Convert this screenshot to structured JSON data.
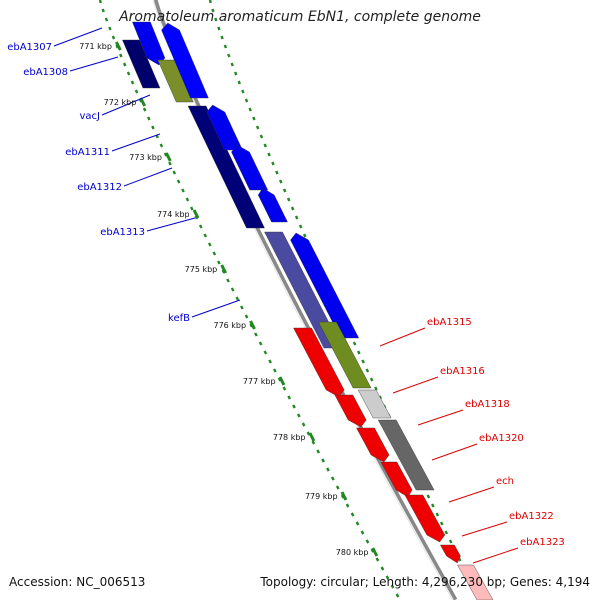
{
  "title": "Aromatoleum aromaticum EbN1, complete genome",
  "footer": {
    "accession": "Accession: NC_006513",
    "topology": "Topology: circular; Length: 4,296,230 bp; Genes: 4,194"
  },
  "kbp_ticks": [
    "771 kbp",
    "772 kbp",
    "773 kbp",
    "774 kbp",
    "775 kbp",
    "776 kbp",
    "777 kbp",
    "778 kbp",
    "779 kbp",
    "780 kbp"
  ],
  "colors": {
    "left_labels": "#0000cc",
    "right_labels": "#dd0000",
    "ring": "#888888",
    "tick_green": "#228822"
  },
  "left_genes": [
    "ebA1307",
    "ebA1308",
    "vacJ",
    "ebA1311",
    "ebA1312",
    "ebA1313",
    "kefB"
  ],
  "right_genes": [
    "ebA1315",
    "ebA1316",
    "ebA1318",
    "ebA1320",
    "ech",
    "ebA1322",
    "ebA1323"
  ]
}
